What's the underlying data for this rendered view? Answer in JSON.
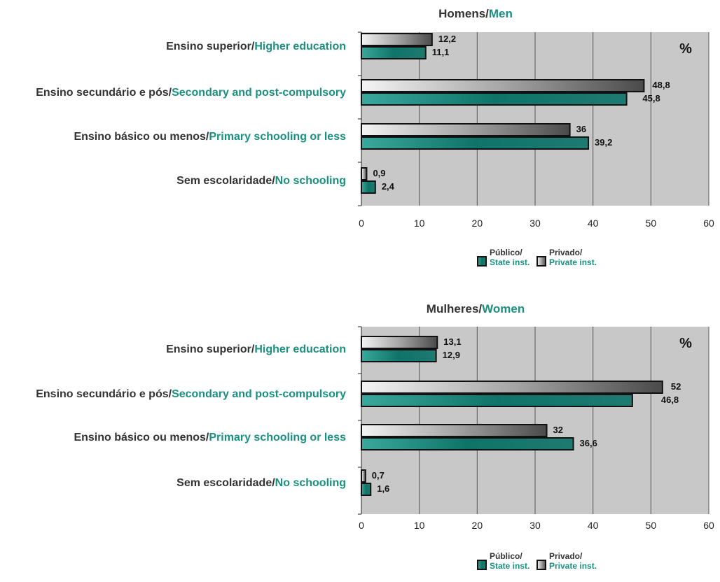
{
  "colors": {
    "label_dark": "#333333",
    "label_teal": "#1a9080",
    "plot_bg": "#c8c8c8",
    "grid": "#555555"
  },
  "legend": {
    "state_pt": "Público/",
    "state_en": "State inst.",
    "private_pt": "Privado/",
    "private_en": "Private inst."
  },
  "chart_data": [
    {
      "type": "bar",
      "orientation": "horizontal",
      "title_pt": "Homens/",
      "title_en": "Men",
      "unit": "%",
      "categories_pt": [
        "Ensino superior/",
        "Ensino secundário e pós/",
        "Ensino básico ou menos/",
        "Sem escolaridade/"
      ],
      "categories_en": [
        "Higher education",
        "Secondary and post-compulsory",
        "Primary schooling or less",
        "No schooling"
      ],
      "xlim": [
        0,
        60
      ],
      "xticks": [
        0,
        10,
        20,
        30,
        40,
        50,
        60
      ],
      "grid": true,
      "legend_position": "bottom",
      "series": [
        {
          "name": "Privado/Private inst.",
          "values": [
            12.2,
            48.8,
            36,
            0.9
          ],
          "labels": [
            "12,2",
            "48,8",
            "36",
            "0,9"
          ]
        },
        {
          "name": "Público/State inst.",
          "values": [
            11.1,
            45.8,
            39.2,
            2.4
          ],
          "labels": [
            "11,1",
            "45,8",
            "39,2",
            "2,4"
          ]
        }
      ]
    },
    {
      "type": "bar",
      "orientation": "horizontal",
      "title_pt": "Mulheres/",
      "title_en": "Women",
      "unit": "%",
      "categories_pt": [
        "Ensino superior/",
        "Ensino secundário e pós/",
        "Ensino básico ou menos/",
        "Sem escolaridade/"
      ],
      "categories_en": [
        "Higher education",
        "Secondary and post-compulsory",
        "Primary schooling or less",
        "No schooling"
      ],
      "xlim": [
        0,
        60
      ],
      "xticks": [
        0,
        10,
        20,
        30,
        40,
        50,
        60
      ],
      "grid": true,
      "legend_position": "bottom",
      "series": [
        {
          "name": "Privado/Private inst.",
          "values": [
            13.1,
            52,
            32,
            0.7
          ],
          "labels": [
            "13,1",
            "52",
            "32",
            "0,7"
          ]
        },
        {
          "name": "Público/State inst.",
          "values": [
            12.9,
            46.8,
            36.6,
            1.6
          ],
          "labels": [
            "12,9",
            "46,8",
            "36,6",
            "1,6"
          ]
        }
      ]
    }
  ]
}
